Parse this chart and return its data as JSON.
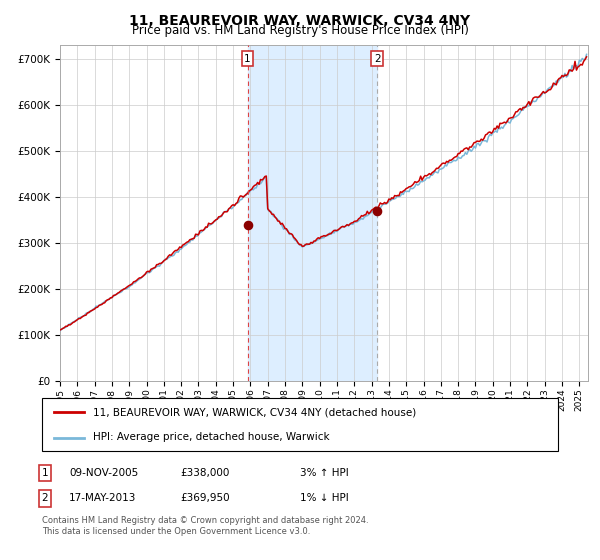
{
  "title": "11, BEAUREVOIR WAY, WARWICK, CV34 4NY",
  "subtitle": "Price paid vs. HM Land Registry's House Price Index (HPI)",
  "title_fontsize": 10,
  "subtitle_fontsize": 8.5,
  "ylabel_ticks": [
    "£0",
    "£100K",
    "£200K",
    "£300K",
    "£400K",
    "£500K",
    "£600K",
    "£700K"
  ],
  "ylim": [
    0,
    730000
  ],
  "purchase1_price": 338000,
  "purchase1_year": 2005,
  "purchase1_month": 10,
  "purchase2_price": 369950,
  "purchase2_year": 2013,
  "purchase2_month": 4,
  "legend_label1": "11, BEAUREVOIR WAY, WARWICK, CV34 4NY (detached house)",
  "legend_label2": "HPI: Average price, detached house, Warwick",
  "footnote1": "Contains HM Land Registry data © Crown copyright and database right 2024.",
  "footnote2": "This data is licensed under the Open Government Licence v3.0.",
  "hpi_line_color": "#7ab8d9",
  "price_line_color": "#cc0000",
  "marker_color": "#8b0000",
  "shade_color": "#ddeeff",
  "grid_color": "#cccccc",
  "row1": [
    "09-NOV-2005",
    "£338,000",
    "3% ↑ HPI"
  ],
  "row2": [
    "17-MAY-2013",
    "£369,950",
    "1% ↓ HPI"
  ]
}
